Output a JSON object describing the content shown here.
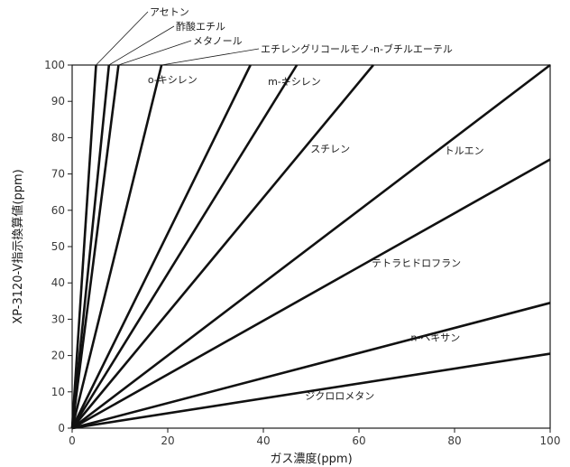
{
  "chart_data": {
    "type": "line",
    "xlabel": "ガス濃度(ppm)",
    "ylabel": "XP-3120-V指示換算値(ppm)",
    "xlim": [
      0,
      100
    ],
    "ylim": [
      0,
      100
    ],
    "xticks": [
      0,
      20,
      40,
      60,
      80,
      100
    ],
    "yticks": [
      0,
      10,
      20,
      30,
      40,
      50,
      60,
      70,
      80,
      90,
      100
    ],
    "grid": false,
    "series": [
      {
        "name": "アセトン",
        "x": [
          0,
          5
        ],
        "y": [
          0,
          100
        ],
        "label_style": "callout"
      },
      {
        "name": "酢酸エチル",
        "x": [
          0,
          7.7
        ],
        "y": [
          0,
          100
        ],
        "label_style": "callout"
      },
      {
        "name": "メタノール",
        "x": [
          0,
          9.7
        ],
        "y": [
          0,
          100
        ],
        "label_style": "callout"
      },
      {
        "name": "エチレングリコールモノ-n-ブチルエーテル",
        "x": [
          0,
          18.7
        ],
        "y": [
          0,
          100
        ],
        "label_style": "callout"
      },
      {
        "name": "o-キシレン",
        "x": [
          0,
          37.3
        ],
        "y": [
          0,
          100
        ],
        "label_style": "inline",
        "label_at": [
          21,
          95
        ]
      },
      {
        "name": "m-キシレン",
        "x": [
          0,
          47
        ],
        "y": [
          0,
          100
        ],
        "label_style": "inline",
        "label_at": [
          46.5,
          94.5
        ]
      },
      {
        "name": "スチレン",
        "x": [
          0,
          63
        ],
        "y": [
          0,
          100
        ],
        "label_style": "inline",
        "label_at": [
          54,
          76
        ]
      },
      {
        "name": "トルエン",
        "x": [
          0,
          100
        ],
        "y": [
          0,
          100
        ],
        "label_style": "inline",
        "label_at": [
          82,
          75.5
        ]
      },
      {
        "name": "テトラヒドロフラン",
        "x": [
          0,
          100
        ],
        "y": [
          0,
          74
        ],
        "label_style": "inline",
        "label_at": [
          72,
          44.5
        ]
      },
      {
        "name": "n-ヘキサン",
        "x": [
          0,
          100
        ],
        "y": [
          0,
          34.5
        ],
        "label_style": "inline",
        "label_at": [
          76,
          24
        ]
      },
      {
        "name": "ジクロロメタン",
        "x": [
          0,
          100
        ],
        "y": [
          0,
          20.5
        ],
        "label_style": "inline",
        "label_at": [
          56,
          8
        ]
      }
    ]
  }
}
